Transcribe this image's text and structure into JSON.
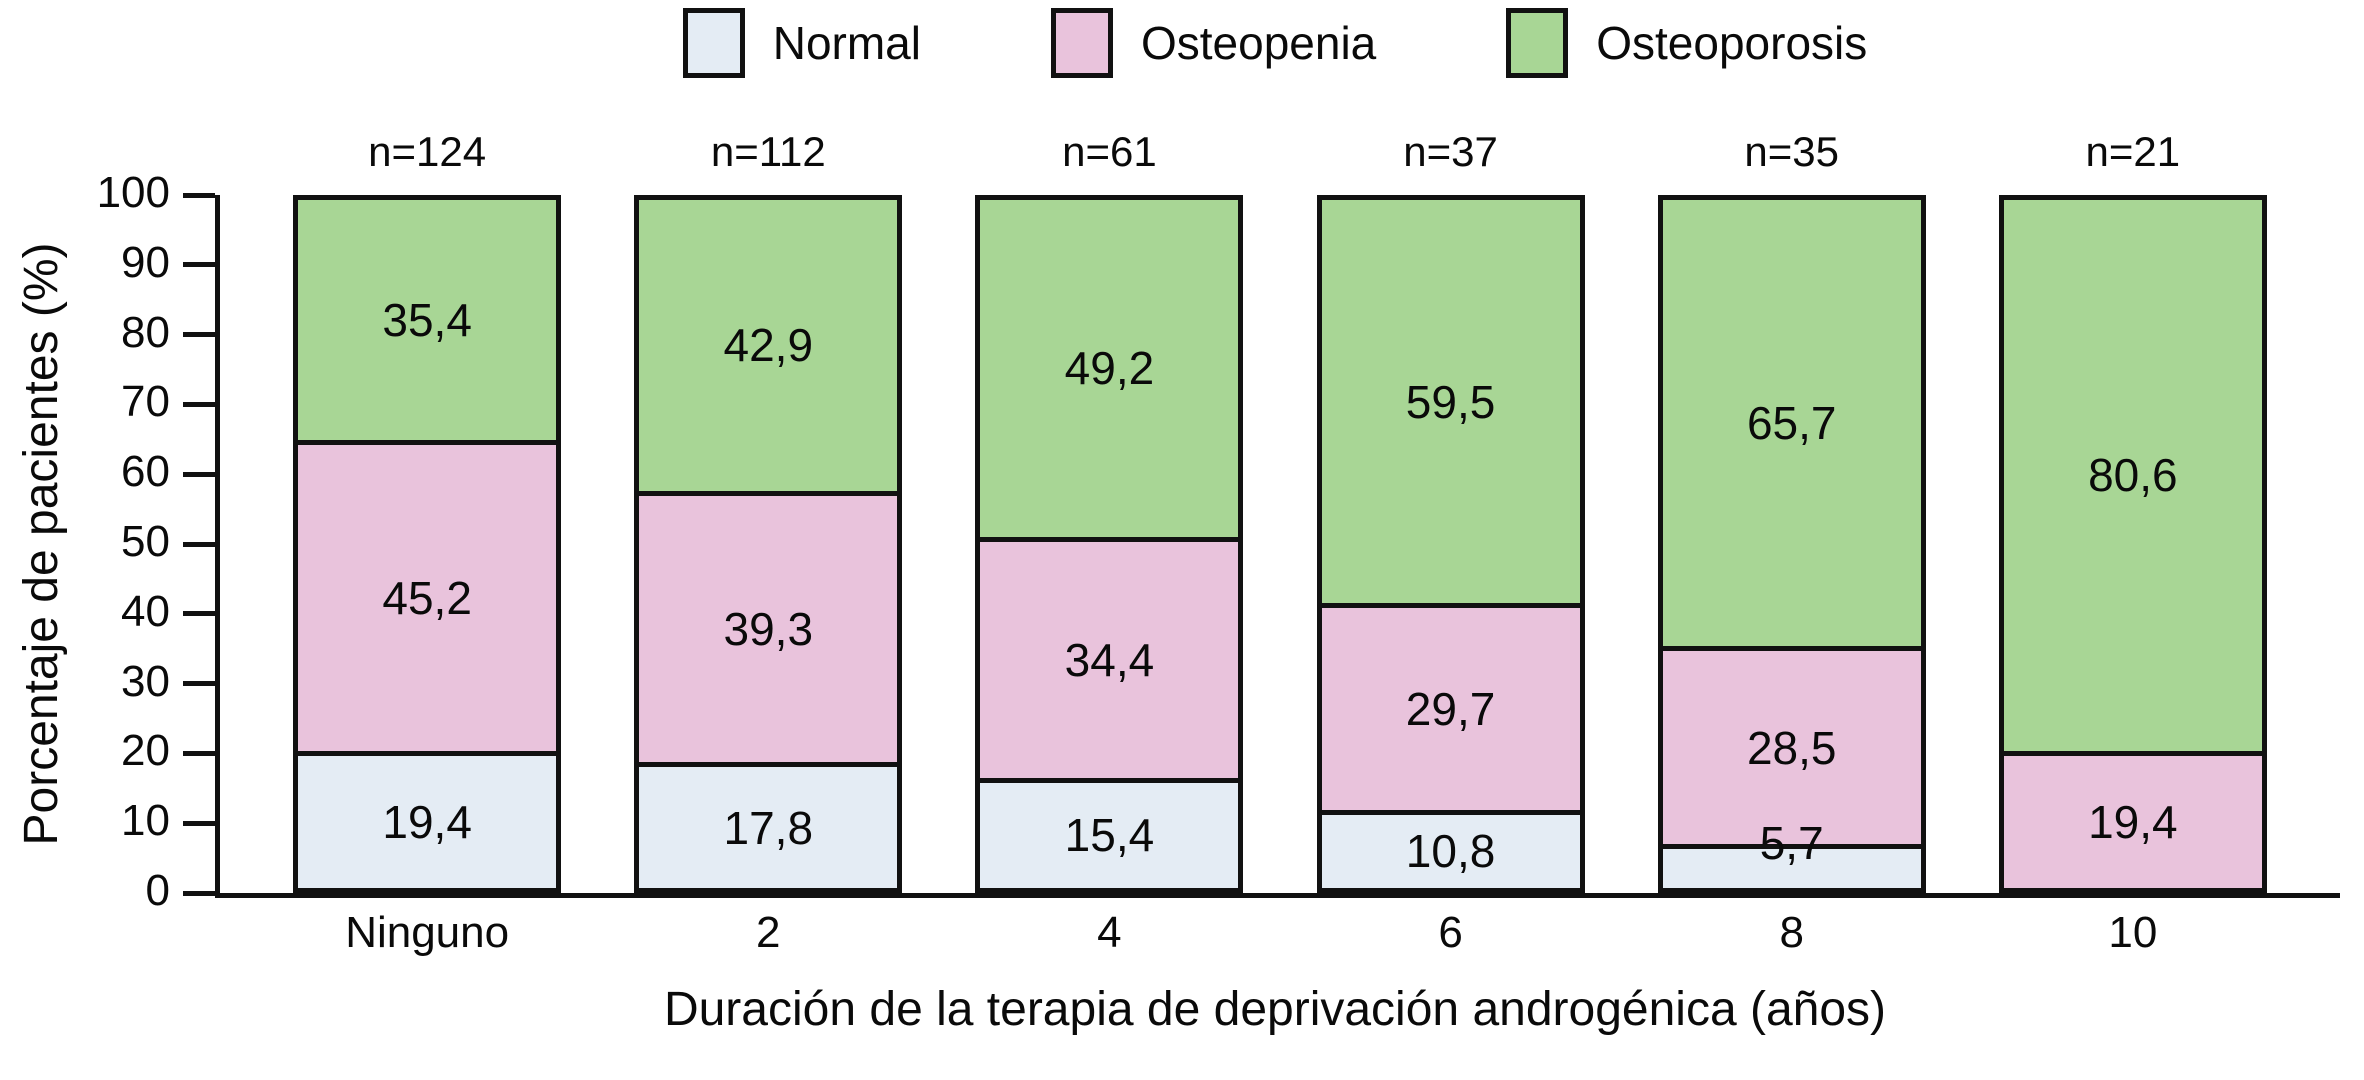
{
  "chart_data": {
    "type": "bar",
    "stacked": true,
    "title": "",
    "categories": [
      "Ninguno",
      "2",
      "4",
      "6",
      "8",
      "10"
    ],
    "n_labels": [
      "n=124",
      "n=112",
      "n=61",
      "n=37",
      "n=35",
      "n=21"
    ],
    "series": [
      {
        "name": "Normal",
        "color": "#e4ecf4",
        "values": [
          19.4,
          17.8,
          15.4,
          10.8,
          5.7,
          0
        ],
        "labels": [
          "19,4",
          "17,8",
          "15,4",
          "10,8",
          "5,7",
          ""
        ]
      },
      {
        "name": "Osteopenia",
        "color": "#e9c3dc",
        "values": [
          45.2,
          39.3,
          34.4,
          29.7,
          28.5,
          19.4
        ],
        "labels": [
          "45,2",
          "39,3",
          "34,4",
          "29,7",
          "28,5",
          "19,4"
        ]
      },
      {
        "name": "Osteoporosis",
        "color": "#a8d695",
        "values": [
          35.4,
          42.9,
          49.2,
          59.5,
          65.7,
          80.6
        ],
        "labels": [
          "35,4",
          "42,9",
          "49,2",
          "59,5",
          "65,7",
          "80,6"
        ]
      }
    ],
    "xlabel": "Duración de la terapia de deprivación androgénica (años)",
    "ylabel": "Porcentaje de pacientes (%)",
    "ylim": [
      0,
      100
    ],
    "yticks": [
      0,
      10,
      20,
      30,
      40,
      50,
      60,
      70,
      80,
      90,
      100
    ],
    "legend_position": "top",
    "grid": false,
    "border_color": "#111111",
    "text_color": "#0a0a0a"
  }
}
